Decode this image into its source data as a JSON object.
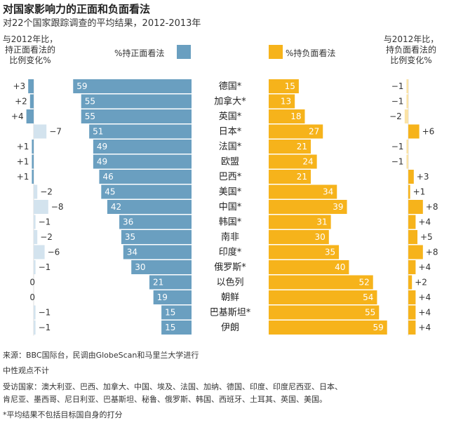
{
  "header": {
    "title": "对国家影响力的正面和负面看法",
    "subtitle": "对22个国家跟踪调查的平均结果，2012-2013年",
    "left_change_line1": "与2012年比，",
    "left_change_line2": "持正面看法的",
    "left_change_line3": "比例变化%",
    "right_change_line1": "与2012年比，",
    "right_change_line2": "持负面看法的",
    "right_change_line3": "比例变化%",
    "legend_positive": "%持正面看法",
    "legend_negative": "%持负面看法"
  },
  "colors": {
    "positive": "#6a9fc0",
    "positive_light": "#d3e3ee",
    "negative": "#f6b31b",
    "negative_light": "#fbe3a6"
  },
  "chart_data": {
    "type": "bar",
    "title": "对国家影响力的正面和负面看法",
    "categories": [
      "德国*",
      "加拿大*",
      "英国*",
      "日本*",
      "法国*",
      "欧盟",
      "巴西*",
      "美国*",
      "中国*",
      "韩国*",
      "南非",
      "印度*",
      "俄罗斯*",
      "以色列",
      "朝鲜",
      "巴基斯坦*",
      "伊朗"
    ],
    "series": [
      {
        "name": "%持正面看法",
        "values": [
          59,
          55,
          55,
          51,
          49,
          49,
          46,
          45,
          42,
          36,
          35,
          34,
          30,
          21,
          19,
          15,
          15
        ]
      },
      {
        "name": "%持负面看法",
        "values": [
          15,
          13,
          18,
          27,
          21,
          24,
          21,
          34,
          39,
          31,
          30,
          35,
          40,
          52,
          54,
          55,
          59
        ]
      },
      {
        "name": "与2012年比，持正面看法的比例变化%",
        "values": [
          3,
          2,
          4,
          -7,
          1,
          1,
          1,
          -2,
          -8,
          -1,
          -2,
          -6,
          -1,
          0,
          0,
          -1,
          -1
        ]
      },
      {
        "name": "与2012年比，持负面看法的比例变化%",
        "values": [
          -1,
          -1,
          -2,
          6,
          -1,
          -1,
          3,
          1,
          8,
          4,
          5,
          8,
          4,
          2,
          4,
          4,
          4
        ]
      }
    ],
    "positive_change_labels": [
      "+3",
      "+2",
      "+4",
      "−7",
      "+1",
      "+1",
      "+1",
      "−2",
      "−8",
      "−1",
      "−2",
      "−6",
      "−1",
      "0",
      "0",
      "−1",
      "−1"
    ],
    "negative_change_labels": [
      "−1",
      "−1",
      "−2",
      "+6",
      "−1",
      "−1",
      "+3",
      "+1",
      "+8",
      "+4",
      "+5",
      "+8",
      "+4",
      "+2",
      "+4",
      "+4",
      "+4"
    ]
  },
  "footer": {
    "source": "来源：BBC国际台，民调由GlobeScan和马里兰大学进行",
    "neutral_note": "中性观点不计",
    "countries_line1": "受访国家：澳大利亚、巴西、加拿大、中国、埃及、法国、加纳、德国、印度、印度尼西亚、日本、",
    "countries_line2": "肯尼亚、墨西哥、尼日利亚、巴基斯坦、秘鲁、俄罗斯、韩国、西班牙、土耳其、英国、美国。",
    "asterisk_note": "*平均结果不包括目标国自身的打分"
  }
}
